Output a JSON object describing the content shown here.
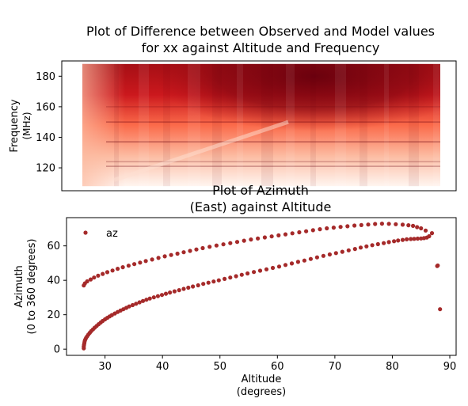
{
  "chart_data": [
    {
      "type": "heatmap",
      "title_lines": [
        "Plot of Difference between Observed and Model values",
        "for xx against Altitude and Frequency"
      ],
      "xlabel": "",
      "ylabel_lines": [
        "Frequency",
        "(MHz)"
      ],
      "xlim": [
        26,
        88.5
      ],
      "ylim": [
        105,
        190
      ],
      "data_freq_range": [
        108,
        188
      ],
      "yticks": [
        120,
        140,
        160,
        180
      ],
      "colormap": "Reds",
      "colormap_stops": [
        "#fff5f0",
        "#fcbba1",
        "#fb6a4a",
        "#cb181d",
        "#67000d"
      ],
      "notes": "difference increases with frequency and altitude; peak near 165-188 MHz around altitude 60-75"
    },
    {
      "type": "scatter",
      "title_lines": [
        "Plot of Azimuth",
        "(East) against Altitude"
      ],
      "xlabel_lines": [
        "Altitude",
        "(degrees)"
      ],
      "ylabel_lines": [
        "Azimuth",
        "(0 to 360 degrees)"
      ],
      "xlim": [
        23.3,
        91.1
      ],
      "ylim": [
        -3.6,
        76.4
      ],
      "xticks": [
        30,
        40,
        50,
        60,
        70,
        80,
        90
      ],
      "yticks": [
        0,
        20,
        40,
        60
      ],
      "marker_color": "#a52a2a",
      "series": [
        {
          "name": "az",
          "points": [
            [
              26.3,
              0.5
            ],
            [
              26.3,
              1.5
            ],
            [
              26.35,
              2.5
            ],
            [
              26.4,
              3.5
            ],
            [
              26.45,
              4.5
            ],
            [
              26.55,
              5.5
            ],
            [
              26.7,
              6.5
            ],
            [
              26.9,
              7.5
            ],
            [
              27.1,
              8.5
            ],
            [
              27.35,
              9.5
            ],
            [
              27.6,
              10.5
            ],
            [
              27.9,
              11.5
            ],
            [
              28.2,
              12.5
            ],
            [
              28.55,
              13.5
            ],
            [
              28.9,
              14.5
            ],
            [
              29.25,
              15.5
            ],
            [
              29.6,
              16.4
            ],
            [
              30.0,
              17.3
            ],
            [
              30.4,
              18.2
            ],
            [
              30.8,
              19.0
            ],
            [
              31.2,
              19.8
            ],
            [
              31.7,
              20.7
            ],
            [
              32.2,
              21.6
            ],
            [
              32.7,
              22.4
            ],
            [
              33.2,
              23.2
            ],
            [
              33.7,
              24.0
            ],
            [
              34.2,
              24.8
            ],
            [
              34.8,
              25.6
            ],
            [
              35.4,
              26.4
            ],
            [
              36.0,
              27.2
            ],
            [
              36.6,
              28.0
            ],
            [
              37.2,
              28.7
            ],
            [
              37.8,
              29.4
            ],
            [
              38.5,
              30.1
            ],
            [
              39.2,
              30.8
            ],
            [
              39.9,
              31.5
            ],
            [
              40.6,
              32.2
            ],
            [
              41.3,
              32.9
            ],
            [
              42.1,
              33.6
            ],
            [
              42.9,
              34.3
            ],
            [
              43.7,
              35.0
            ],
            [
              44.5,
              35.7
            ],
            [
              45.3,
              36.4
            ],
            [
              46.2,
              37.1
            ],
            [
              47.1,
              37.9
            ],
            [
              48.0,
              38.6
            ],
            [
              48.9,
              39.3
            ],
            [
              49.8,
              40.0
            ],
            [
              50.8,
              40.8
            ],
            [
              51.8,
              41.6
            ],
            [
              52.8,
              42.4
            ],
            [
              53.8,
              43.2
            ],
            [
              54.8,
              44.0
            ],
            [
              55.9,
              44.8
            ],
            [
              57.0,
              45.6
            ],
            [
              58.1,
              46.4
            ],
            [
              59.2,
              47.2
            ],
            [
              60.3,
              48.0
            ],
            [
              61.4,
              48.9
            ],
            [
              62.5,
              49.8
            ],
            [
              63.6,
              50.7
            ],
            [
              64.7,
              51.5
            ],
            [
              65.8,
              52.4
            ],
            [
              66.9,
              53.3
            ],
            [
              68.0,
              54.2
            ],
            [
              69.1,
              55.0
            ],
            [
              70.2,
              55.8
            ],
            [
              71.3,
              56.6
            ],
            [
              72.4,
              57.4
            ],
            [
              73.5,
              58.2
            ],
            [
              74.5,
              59.0
            ],
            [
              75.5,
              59.7
            ],
            [
              76.5,
              60.4
            ],
            [
              77.5,
              61.0
            ],
            [
              78.5,
              61.6
            ],
            [
              79.4,
              62.2
            ],
            [
              80.3,
              62.7
            ],
            [
              81.0,
              63.1
            ],
            [
              81.8,
              63.5
            ],
            [
              82.5,
              63.8
            ],
            [
              83.2,
              64.0
            ],
            [
              83.8,
              64.1
            ],
            [
              84.4,
              64.2
            ],
            [
              85.0,
              64.3
            ],
            [
              85.5,
              64.5
            ],
            [
              86.0,
              64.8
            ],
            [
              86.4,
              65.6
            ],
            [
              86.9,
              67.4
            ],
            [
              85.8,
              68.9
            ],
            [
              85.0,
              70.2
            ],
            [
              84.3,
              70.9
            ],
            [
              83.6,
              71.6
            ],
            [
              82.8,
              72.0
            ],
            [
              81.8,
              72.3
            ],
            [
              80.6,
              72.6
            ],
            [
              79.4,
              72.8
            ],
            [
              78.2,
              72.9
            ],
            [
              77.0,
              72.7
            ],
            [
              75.8,
              72.4
            ],
            [
              74.6,
              72.1
            ],
            [
              73.4,
              71.8
            ],
            [
              72.2,
              71.4
            ],
            [
              71.0,
              71.0
            ],
            [
              69.8,
              70.6
            ],
            [
              68.6,
              70.2
            ],
            [
              67.4,
              69.7
            ],
            [
              66.2,
              69.1
            ],
            [
              65.0,
              68.5
            ],
            [
              63.8,
              67.9
            ],
            [
              62.6,
              67.3
            ],
            [
              61.4,
              66.7
            ],
            [
              60.2,
              66.1
            ],
            [
              59.0,
              65.5
            ],
            [
              57.8,
              64.9
            ],
            [
              56.6,
              64.3
            ],
            [
              55.4,
              63.7
            ],
            [
              54.2,
              63.0
            ],
            [
              53.0,
              62.3
            ],
            [
              51.8,
              61.6
            ],
            [
              50.6,
              60.9
            ],
            [
              49.4,
              60.2
            ],
            [
              48.2,
              59.5
            ],
            [
              47.0,
              58.7
            ],
            [
              45.9,
              57.9
            ],
            [
              44.8,
              57.1
            ],
            [
              43.7,
              56.3
            ],
            [
              42.6,
              55.5
            ],
            [
              41.5,
              54.7
            ],
            [
              40.4,
              53.9
            ],
            [
              39.3,
              53.0
            ],
            [
              38.2,
              52.1
            ],
            [
              37.1,
              51.2
            ],
            [
              36.1,
              50.3
            ],
            [
              35.1,
              49.4
            ],
            [
              34.1,
              48.5
            ],
            [
              33.1,
              47.6
            ],
            [
              32.2,
              46.7
            ],
            [
              31.3,
              45.7
            ],
            [
              30.4,
              44.7
            ],
            [
              29.6,
              43.7
            ],
            [
              28.8,
              42.7
            ],
            [
              28.1,
              41.6
            ],
            [
              27.5,
              40.5
            ],
            [
              26.9,
              39.4
            ],
            [
              26.5,
              38.2
            ],
            [
              26.3,
              37.0
            ],
            [
              87.8,
              48.3
            ],
            [
              87.9,
              48.6
            ],
            [
              88.3,
              23.2
            ]
          ]
        }
      ],
      "legend": {
        "placement": "upper-left",
        "entries": [
          "az"
        ]
      }
    }
  ]
}
